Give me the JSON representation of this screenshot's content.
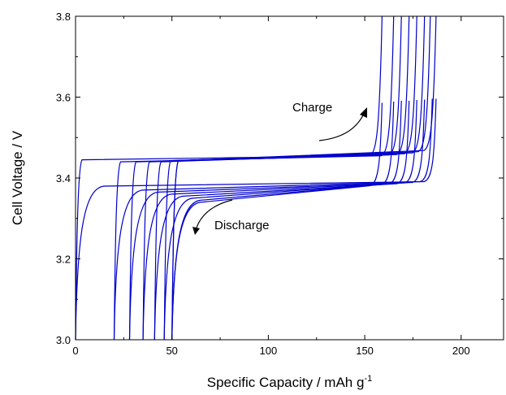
{
  "chart_data": {
    "type": "line",
    "title": "",
    "xlabel": "Specific Capacity / mAh g",
    "xlabel_superscript": "-1",
    "ylabel": "Cell Voltage / V",
    "xlim": [
      0,
      222
    ],
    "ylim": [
      3.0,
      3.8
    ],
    "xticks": [
      0,
      50,
      100,
      150,
      200
    ],
    "yticks": [
      3.0,
      3.2,
      3.4,
      3.6,
      3.8
    ],
    "xtick_labels": [
      "0",
      "50",
      "100",
      "150",
      "200"
    ],
    "ytick_labels": [
      "3.0",
      "3.2",
      "3.4",
      "3.6",
      "3.8"
    ],
    "grid": false,
    "line_color": "#0000cc",
    "annotations": [
      {
        "text": "Charge"
      },
      {
        "text": "Discharge"
      }
    ],
    "charge_curves": [
      {
        "x_start": 0,
        "x_end": 159,
        "v_plateau_start": 3.445,
        "v_plateau_end": 3.455
      },
      {
        "x_start": 20,
        "x_end": 165,
        "v_plateau_start": 3.44,
        "v_plateau_end": 3.455
      },
      {
        "x_start": 28,
        "x_end": 169,
        "v_plateau_start": 3.44,
        "v_plateau_end": 3.457
      },
      {
        "x_start": 35,
        "x_end": 173,
        "v_plateau_start": 3.44,
        "v_plateau_end": 3.458
      },
      {
        "x_start": 41,
        "x_end": 177,
        "v_plateau_start": 3.44,
        "v_plateau_end": 3.46
      },
      {
        "x_start": 46,
        "x_end": 181,
        "v_plateau_start": 3.443,
        "v_plateau_end": 3.462
      },
      {
        "x_start": 50,
        "x_end": 184,
        "v_plateau_start": 3.443,
        "v_plateau_end": 3.465
      },
      {
        "x_start": 50,
        "x_end": 187,
        "v_plateau_start": 3.443,
        "v_plateau_end": 3.468
      }
    ],
    "discharge_curves": [
      {
        "x_start": 187,
        "x_end": 0,
        "v_plateau_start": 3.395,
        "v_plateau_end": 3.38
      },
      {
        "x_start": 185,
        "x_end": 20,
        "v_plateau_start": 3.395,
        "v_plateau_end": 3.37
      },
      {
        "x_start": 181,
        "x_end": 28,
        "v_plateau_start": 3.393,
        "v_plateau_end": 3.365
      },
      {
        "x_start": 177,
        "x_end": 35,
        "v_plateau_start": 3.392,
        "v_plateau_end": 3.36
      },
      {
        "x_start": 173,
        "x_end": 41,
        "v_plateau_start": 3.39,
        "v_plateau_end": 3.355
      },
      {
        "x_start": 169,
        "x_end": 46,
        "v_plateau_start": 3.39,
        "v_plateau_end": 3.35
      },
      {
        "x_start": 165,
        "x_end": 50,
        "v_plateau_start": 3.388,
        "v_plateau_end": 3.345
      },
      {
        "x_start": 159,
        "x_end": 50,
        "v_plateau_start": 3.385,
        "v_plateau_end": 3.34
      }
    ]
  }
}
